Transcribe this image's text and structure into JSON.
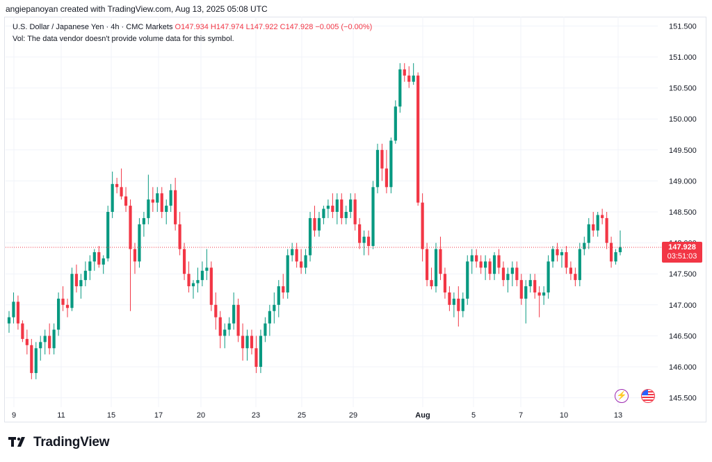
{
  "header": {
    "credit": "angiepanoyan created with TradingView.com, Aug 13, 2025 05:08 UTC"
  },
  "legend": {
    "symbol_line": "U.S. Dollar / Japanese Yen · 4h · CMC Markets",
    "ohlc": "O147.934 H147.974 L147.922 C147.928 −0.005 (−0.00%)",
    "volume_note": "Vol: The data vendor doesn't provide volume data for this symbol."
  },
  "price_tag": {
    "price": "147.928",
    "countdown": "03:51:03"
  },
  "footer": {
    "brand": "TradingView"
  },
  "icons": {
    "event_icon": "lightning-icon",
    "flag_icon": "us-flag-icon",
    "logo_icon": "tradingview-logo-icon"
  },
  "colors": {
    "up": "#089981",
    "down": "#f23645",
    "grid": "#f0f3fa",
    "last_price_line": "#f23645"
  },
  "chart_data": {
    "type": "candlestick",
    "symbol": "U.S. Dollar / Japanese Yen",
    "interval": "4h",
    "y_axis_labels": [
      "151.500",
      "151.000",
      "150.500",
      "150.000",
      "149.500",
      "149.000",
      "148.500",
      "148.000",
      "147.500",
      "147.000",
      "146.500",
      "146.000",
      "145.500"
    ],
    "ylim": [
      145.35,
      151.65
    ],
    "x_axis_labels": [
      "9",
      "11",
      "15",
      "17",
      "20",
      "23",
      "25",
      "29",
      "Aug",
      "5",
      "7",
      "10",
      "13"
    ],
    "last_price": 147.928,
    "candles": [
      [
        146.7,
        146.9,
        146.55,
        146.8
      ],
      [
        146.8,
        147.2,
        146.7,
        147.05
      ],
      [
        147.05,
        147.15,
        146.6,
        146.7
      ],
      [
        146.7,
        146.75,
        146.4,
        146.45
      ],
      [
        146.45,
        146.6,
        146.2,
        146.35
      ],
      [
        146.35,
        146.45,
        145.8,
        145.9
      ],
      [
        145.9,
        146.4,
        145.8,
        146.3
      ],
      [
        146.3,
        146.5,
        146.1,
        146.4
      ],
      [
        146.4,
        146.6,
        146.2,
        146.5
      ],
      [
        146.5,
        146.7,
        146.2,
        146.3
      ],
      [
        146.3,
        146.7,
        146.2,
        146.6
      ],
      [
        146.6,
        147.2,
        146.5,
        147.1
      ],
      [
        147.1,
        147.3,
        146.9,
        147.0
      ],
      [
        147.0,
        147.1,
        146.8,
        146.95
      ],
      [
        146.95,
        147.6,
        146.9,
        147.5
      ],
      [
        147.5,
        147.65,
        147.2,
        147.3
      ],
      [
        147.3,
        147.5,
        147.1,
        147.4
      ],
      [
        147.4,
        147.7,
        147.3,
        147.55
      ],
      [
        147.55,
        147.8,
        147.4,
        147.7
      ],
      [
        147.7,
        147.9,
        147.55,
        147.85
      ],
      [
        147.85,
        147.95,
        147.6,
        147.65
      ],
      [
        147.65,
        147.8,
        147.5,
        147.75
      ],
      [
        147.75,
        148.6,
        147.7,
        148.5
      ],
      [
        148.5,
        149.15,
        148.4,
        148.95
      ],
      [
        148.95,
        149.05,
        148.8,
        148.9
      ],
      [
        148.9,
        149.2,
        148.7,
        148.75
      ],
      [
        148.75,
        148.9,
        148.5,
        148.6
      ],
      [
        148.6,
        148.7,
        146.9,
        147.9
      ],
      [
        147.9,
        148.0,
        147.5,
        147.7
      ],
      [
        147.7,
        148.4,
        147.6,
        148.3
      ],
      [
        148.3,
        148.5,
        148.1,
        148.4
      ],
      [
        148.4,
        149.1,
        148.3,
        148.7
      ],
      [
        148.7,
        148.9,
        148.5,
        148.65
      ],
      [
        148.65,
        148.9,
        148.5,
        148.8
      ],
      [
        148.8,
        148.9,
        148.4,
        148.5
      ],
      [
        148.5,
        148.7,
        148.3,
        148.6
      ],
      [
        148.6,
        148.95,
        148.5,
        148.85
      ],
      [
        148.85,
        149.05,
        148.2,
        148.3
      ],
      [
        148.3,
        148.5,
        147.8,
        147.9
      ],
      [
        147.9,
        148.0,
        147.4,
        147.5
      ],
      [
        147.5,
        147.7,
        147.2,
        147.3
      ],
      [
        147.3,
        147.4,
        147.1,
        147.35
      ],
      [
        147.35,
        147.6,
        147.2,
        147.4
      ],
      [
        147.4,
        147.7,
        147.3,
        147.55
      ],
      [
        147.55,
        147.9,
        147.4,
        147.6
      ],
      [
        147.6,
        147.7,
        146.9,
        147.0
      ],
      [
        147.0,
        147.2,
        146.6,
        146.8
      ],
      [
        146.8,
        146.9,
        146.3,
        146.5
      ],
      [
        146.5,
        146.7,
        146.3,
        146.6
      ],
      [
        146.6,
        146.8,
        146.5,
        146.7
      ],
      [
        146.7,
        147.2,
        146.6,
        147.0
      ],
      [
        147.0,
        147.1,
        146.4,
        146.5
      ],
      [
        146.5,
        146.7,
        146.1,
        146.3
      ],
      [
        146.3,
        146.6,
        146.1,
        146.5
      ],
      [
        146.5,
        146.6,
        146.2,
        146.3
      ],
      [
        146.3,
        146.5,
        145.9,
        146.0
      ],
      [
        146.0,
        146.6,
        145.9,
        146.5
      ],
      [
        146.5,
        146.8,
        146.4,
        146.7
      ],
      [
        146.7,
        147.0,
        146.5,
        146.9
      ],
      [
        146.9,
        147.2,
        146.7,
        147.0
      ],
      [
        147.0,
        147.4,
        146.8,
        147.3
      ],
      [
        147.3,
        147.5,
        147.1,
        147.2
      ],
      [
        147.2,
        147.9,
        147.1,
        147.8
      ],
      [
        147.8,
        148.0,
        147.7,
        147.9
      ],
      [
        147.9,
        148.0,
        147.6,
        147.7
      ],
      [
        147.7,
        147.9,
        147.5,
        147.6
      ],
      [
        147.6,
        147.9,
        147.5,
        147.8
      ],
      [
        147.8,
        148.5,
        147.7,
        148.4
      ],
      [
        148.4,
        148.6,
        148.1,
        148.2
      ],
      [
        148.2,
        148.5,
        148.1,
        148.4
      ],
      [
        148.4,
        148.6,
        148.3,
        148.55
      ],
      [
        148.55,
        148.7,
        148.4,
        148.6
      ],
      [
        148.6,
        148.8,
        148.4,
        148.5
      ],
      [
        148.5,
        148.8,
        148.3,
        148.7
      ],
      [
        148.7,
        148.8,
        148.3,
        148.4
      ],
      [
        148.4,
        148.6,
        148.3,
        148.5
      ],
      [
        148.5,
        148.8,
        148.4,
        148.7
      ],
      [
        148.7,
        148.8,
        148.2,
        148.3
      ],
      [
        148.3,
        148.4,
        147.9,
        148.0
      ],
      [
        148.0,
        148.2,
        147.8,
        148.1
      ],
      [
        148.1,
        148.2,
        147.8,
        147.95
      ],
      [
        147.95,
        149.0,
        147.9,
        148.9
      ],
      [
        148.9,
        149.6,
        148.8,
        149.5
      ],
      [
        149.5,
        149.6,
        149.0,
        149.2
      ],
      [
        149.2,
        149.5,
        148.8,
        148.9
      ],
      [
        148.9,
        149.7,
        148.8,
        149.65
      ],
      [
        149.65,
        150.3,
        149.6,
        150.2
      ],
      [
        150.2,
        150.9,
        150.1,
        150.8
      ],
      [
        150.8,
        150.9,
        150.6,
        150.7
      ],
      [
        150.7,
        150.85,
        150.5,
        150.6
      ],
      [
        150.6,
        150.9,
        150.55,
        150.7
      ],
      [
        150.7,
        150.75,
        148.6,
        148.65
      ],
      [
        148.65,
        148.8,
        147.7,
        147.9
      ],
      [
        147.9,
        148.0,
        147.3,
        147.4
      ],
      [
        147.4,
        147.6,
        147.25,
        147.3
      ],
      [
        147.3,
        148.0,
        147.2,
        147.9
      ],
      [
        147.9,
        148.1,
        147.4,
        147.5
      ],
      [
        147.5,
        147.6,
        147.1,
        147.2
      ],
      [
        147.2,
        147.3,
        146.9,
        147.0
      ],
      [
        147.0,
        147.2,
        146.8,
        147.1
      ],
      [
        147.1,
        147.3,
        146.65,
        146.9
      ],
      [
        146.9,
        147.2,
        146.8,
        147.1
      ],
      [
        147.1,
        147.8,
        147.0,
        147.7
      ],
      [
        147.7,
        147.9,
        147.5,
        147.8
      ],
      [
        147.8,
        147.9,
        147.6,
        147.7
      ],
      [
        147.7,
        147.8,
        147.5,
        147.6
      ],
      [
        147.6,
        147.8,
        147.4,
        147.7
      ],
      [
        147.7,
        147.75,
        147.4,
        147.5
      ],
      [
        147.5,
        147.85,
        147.4,
        147.8
      ],
      [
        147.8,
        147.9,
        147.5,
        147.6
      ],
      [
        147.6,
        147.7,
        147.3,
        147.4
      ],
      [
        147.4,
        147.6,
        147.2,
        147.5
      ],
      [
        147.5,
        147.7,
        147.3,
        147.6
      ],
      [
        147.6,
        147.7,
        147.3,
        147.4
      ],
      [
        147.4,
        147.5,
        147.0,
        147.1
      ],
      [
        147.1,
        147.4,
        146.7,
        147.3
      ],
      [
        147.3,
        147.5,
        147.2,
        147.4
      ],
      [
        147.4,
        147.5,
        147.1,
        147.2
      ],
      [
        147.2,
        147.3,
        146.8,
        147.15
      ],
      [
        147.15,
        147.3,
        147.0,
        147.2
      ],
      [
        147.2,
        147.8,
        147.1,
        147.7
      ],
      [
        147.7,
        147.95,
        147.6,
        147.9
      ],
      [
        147.9,
        148.0,
        147.7,
        147.8
      ],
      [
        147.8,
        147.9,
        147.6,
        147.85
      ],
      [
        147.85,
        147.95,
        147.5,
        147.6
      ],
      [
        147.6,
        147.7,
        147.4,
        147.5
      ],
      [
        147.5,
        147.6,
        147.3,
        147.4
      ],
      [
        147.4,
        148.0,
        147.3,
        147.9
      ],
      [
        147.9,
        148.1,
        147.8,
        148.0
      ],
      [
        148.0,
        148.4,
        147.9,
        148.3
      ],
      [
        148.3,
        148.5,
        148.1,
        148.2
      ],
      [
        148.2,
        148.5,
        148.1,
        148.45
      ],
      [
        148.45,
        148.55,
        148.3,
        148.4
      ],
      [
        148.4,
        148.5,
        147.9,
        148.0
      ],
      [
        148.0,
        148.1,
        147.6,
        147.7
      ],
      [
        147.7,
        147.9,
        147.65,
        147.85
      ],
      [
        147.85,
        148.2,
        147.8,
        147.934
      ]
    ]
  }
}
